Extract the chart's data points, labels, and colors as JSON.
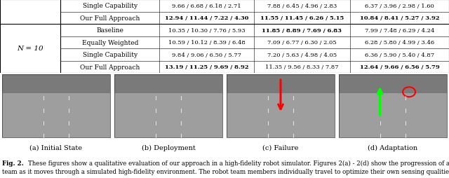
{
  "table_top_rows": [
    [
      "Single Capability",
      "9.66 / 6.68 / 6.18 / 2.71",
      "7.88 / 6.45 / 4.96 / 2.83",
      "6.37 / 3.96 / 2.98 / 1.60"
    ],
    [
      "Our Full Approach",
      "12.94 / 11.44 / 7.22 / 4.30",
      "11.55 / 11.45 / 6.26 / 5.15",
      "10.84 / 8.41 / 5.27 / 3.92"
    ]
  ],
  "table_top_bold": [
    [
      false,
      false,
      false,
      false
    ],
    [
      false,
      true,
      true,
      true
    ]
  ],
  "n10_label": "N = 10",
  "table_n10_rows": [
    [
      "Baseline",
      "10.35 / 10.30 / 7.76 / 5.93",
      "11.85 / 8.89 / 7.69 / 6.83",
      "7.99 / 7.48 / 6.29 / 4.24"
    ],
    [
      "Equally Weighted",
      "10.59 / 10.12 / 8.39 / 6.48",
      "7.09 / 6.77 / 6.30 / 2.05",
      "6.28 / 5.80 / 4.99 / 3.46"
    ],
    [
      "Single Capability",
      "9.84 / 9.06 / 6.50 / 5.77",
      "7.20 / 5.63 / 4.98 / 4.05",
      "6.36 / 5.90 / 5.40 / 4.87"
    ],
    [
      "Our Full Approach",
      "13.19 / 11.25 / 9.69 / 8.92",
      "11.35 / 9.56 / 8.33 / 7.87",
      "12.64 / 9.66 / 6.56 / 5.79"
    ]
  ],
  "table_n10_bold": [
    [
      false,
      false,
      true,
      false
    ],
    [
      false,
      false,
      false,
      false
    ],
    [
      false,
      false,
      false,
      false
    ],
    [
      false,
      true,
      false,
      true
    ]
  ],
  "subcaptions": [
    "(a) Initial State",
    "(b) Deployment",
    "(c) Failure",
    "(d) Adaptation"
  ],
  "fig_caption_label": "Fig. 2.",
  "fig_caption_text": "These figures show a qualitative evaluation of our approach in a high-fidelity robot simulator. Figures 2(a) - 2(d) show the progression of a multi-robot team as it moves through a simulated high-fidelity environment. The robot team members individually travel to optimize their own sensing qualities, yet through",
  "bg_color": "#ffffff",
  "road_color": "#aaaaaa",
  "road_dark": "#888888",
  "building_color": "#999999"
}
